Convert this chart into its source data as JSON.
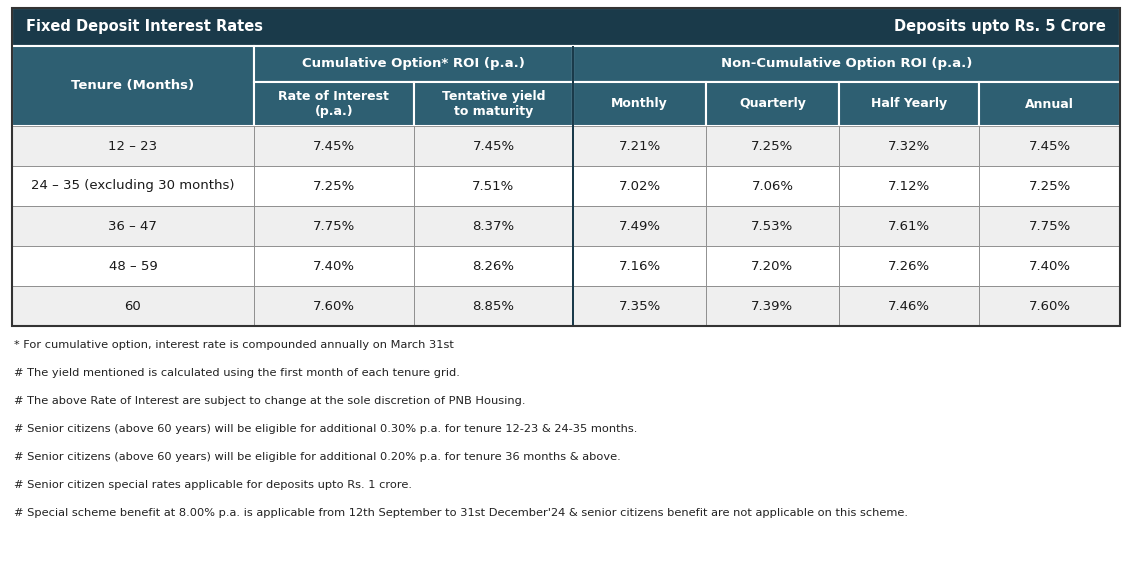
{
  "title_left": "Fixed Deposit Interest Rates",
  "title_right": "Deposits upto Rs. 5 Crore",
  "header_bg": "#1a3a4a",
  "header_text_color": "#ffffff",
  "subheader_bg": "#2e5f72",
  "subheader_text_color": "#ffffff",
  "row_bg_odd": "#efefef",
  "row_bg_even": "#ffffff",
  "row_text_color": "#1a1a1a",
  "border_color": "#888888",
  "outer_bg": "#ffffff",
  "col_groups": [
    {
      "label": "Cumulative Option* ROI (p.a.)",
      "span": 2
    },
    {
      "label": "Non-Cumulative Option ROI (p.a.)",
      "span": 4
    }
  ],
  "col_headers": [
    "Rate of Interest\n(p.a.)",
    "Tentative yield\nto maturity",
    "Monthly",
    "Quarterly",
    "Half Yearly",
    "Annual"
  ],
  "row_header": "Tenure (Months)",
  "rows": [
    {
      "tenure": "12 – 23",
      "values": [
        "7.45%",
        "7.45%",
        "7.21%",
        "7.25%",
        "7.32%",
        "7.45%"
      ]
    },
    {
      "tenure": "24 – 35 (excluding 30 months)",
      "values": [
        "7.25%",
        "7.51%",
        "7.02%",
        "7.06%",
        "7.12%",
        "7.25%"
      ]
    },
    {
      "tenure": "36 – 47",
      "values": [
        "7.75%",
        "8.37%",
        "7.49%",
        "7.53%",
        "7.61%",
        "7.75%"
      ]
    },
    {
      "tenure": "48 – 59",
      "values": [
        "7.40%",
        "8.26%",
        "7.16%",
        "7.20%",
        "7.26%",
        "7.40%"
      ]
    },
    {
      "tenure": "60",
      "values": [
        "7.60%",
        "8.85%",
        "7.35%",
        "7.39%",
        "7.46%",
        "7.60%"
      ]
    }
  ],
  "footnotes": [
    "* For cumulative option, interest rate is compounded annually on March 31st",
    "# The yield mentioned is calculated using the first month of each tenure grid.",
    "# The above Rate of Interest are subject to change at the sole discretion of PNB Housing.",
    "# Senior citizens (above 60 years) will be eligible for additional 0.30% p.a. for tenure 12-23 & 24-35 months.",
    "# Senior citizens (above 60 years) will be eligible for additional 0.20% p.a. for tenure 36 months & above.",
    "# Senior citizen special rates applicable for deposits upto Rs. 1 crore.",
    "# Special scheme benefit at 8.00% p.a. is applicable from 12th September to 31st December'24 & senior citizens benefit are not applicable on this scheme."
  ],
  "footnote_fontsize": 8.2,
  "title_fontsize": 10.5,
  "group_header_fontsize": 9.5,
  "col_header_fontsize": 9.0,
  "data_fontsize": 9.5,
  "tenure_header_fontsize": 9.5,
  "fig_width": 11.32,
  "fig_height": 5.73,
  "dpi": 100
}
